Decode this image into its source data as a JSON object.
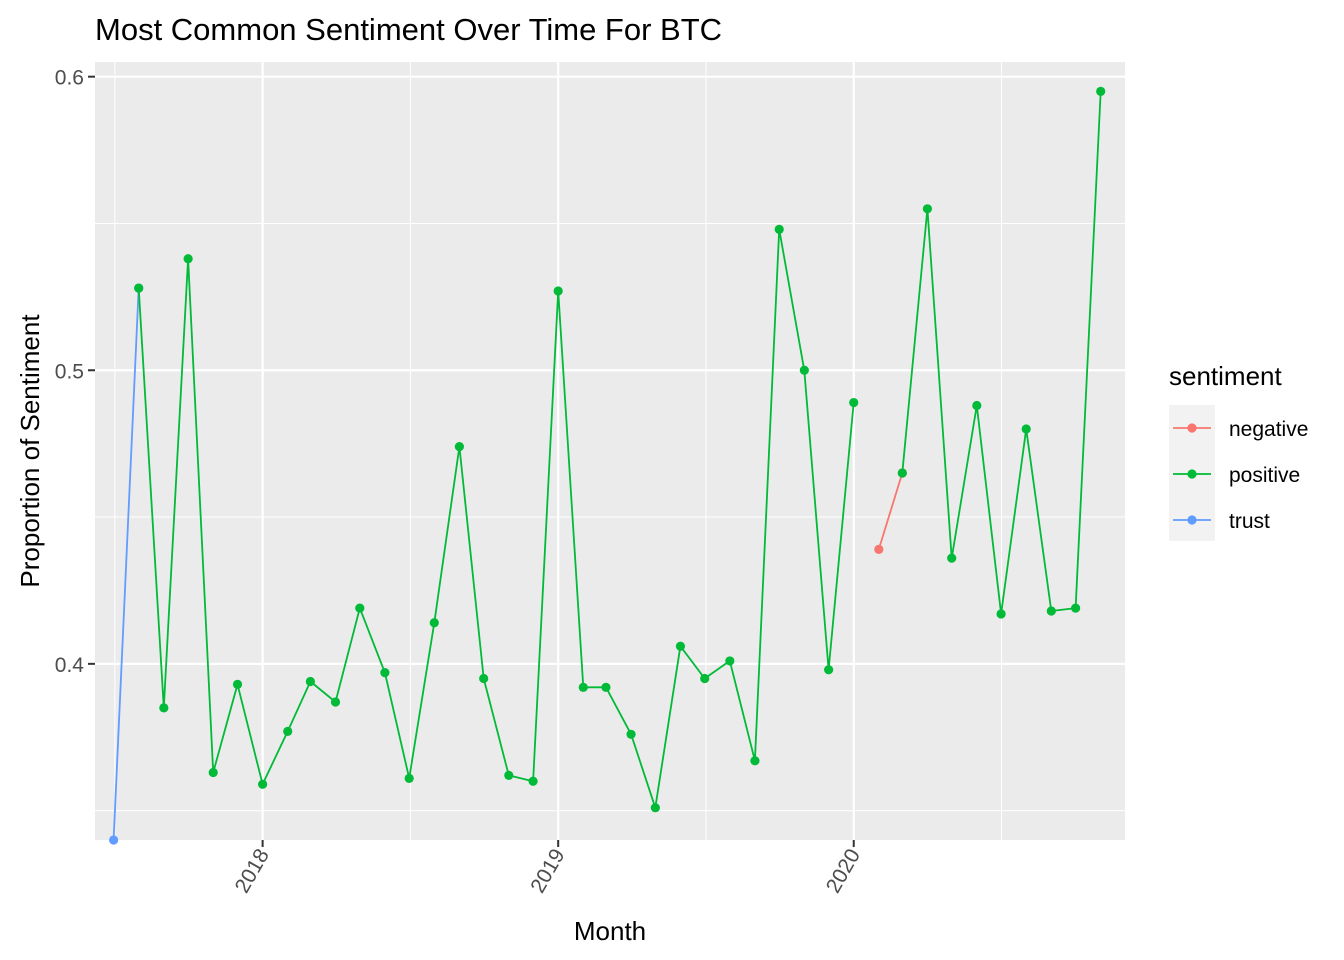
{
  "chart_data": {
    "type": "line",
    "title": "Most Common Sentiment Over Time For BTC",
    "xlabel": "Month",
    "ylabel": "Proportion of Sentiment",
    "ylim": [
      0.34,
      0.605
    ],
    "xlim": [
      "2017-06-08",
      "2020-12-01"
    ],
    "y_ticks": [
      0.4,
      0.5,
      0.6
    ],
    "y_tick_labels": [
      "0.4",
      "0.5",
      "0.6"
    ],
    "x_ticks": [
      "2018-01-01",
      "2019-01-01",
      "2020-01-01"
    ],
    "x_tick_labels": [
      "2018",
      "2019",
      "2020"
    ],
    "grid": true,
    "legend": {
      "title": "sentiment",
      "position": "right"
    },
    "colors": {
      "negative": "#F8766D",
      "positive": "#00BA38",
      "trust": "#619CFF"
    },
    "series": [
      {
        "name": "trust",
        "color": "#619CFF",
        "points": [
          [
            "2017-07-01",
            0.34
          ],
          [
            "2017-08-01",
            0.528
          ]
        ]
      },
      {
        "name": "positive",
        "color": "#00BA38",
        "points": [
          [
            "2017-08-01",
            0.528
          ],
          [
            "2017-09-01",
            0.385
          ],
          [
            "2017-10-01",
            0.538
          ],
          [
            "2017-11-01",
            0.363
          ],
          [
            "2017-12-01",
            0.393
          ],
          [
            "2018-01-01",
            0.359
          ],
          [
            "2018-02-01",
            0.377
          ],
          [
            "2018-03-01",
            0.394
          ],
          [
            "2018-04-01",
            0.387
          ],
          [
            "2018-05-01",
            0.419
          ],
          [
            "2018-06-01",
            0.397
          ],
          [
            "2018-07-01",
            0.361
          ],
          [
            "2018-08-01",
            0.414
          ],
          [
            "2018-09-01",
            0.474
          ],
          [
            "2018-10-01",
            0.395
          ],
          [
            "2018-11-01",
            0.362
          ],
          [
            "2018-12-01",
            0.36
          ],
          [
            "2019-01-01",
            0.527
          ],
          [
            "2019-02-01",
            0.392
          ],
          [
            "2019-03-01",
            0.392
          ],
          [
            "2019-04-01",
            0.376
          ],
          [
            "2019-05-01",
            0.351
          ],
          [
            "2019-06-01",
            0.406
          ],
          [
            "2019-07-01",
            0.395
          ],
          [
            "2019-08-01",
            0.401
          ],
          [
            "2019-09-01",
            0.367
          ],
          [
            "2019-10-01",
            0.548
          ],
          [
            "2019-11-01",
            0.5
          ],
          [
            "2019-12-01",
            0.398
          ],
          [
            "2020-01-01",
            0.489
          ]
        ]
      },
      {
        "name": "negative",
        "color": "#F8766D",
        "points": [
          [
            "2020-02-01",
            0.439
          ],
          [
            "2020-03-01",
            0.465
          ]
        ]
      },
      {
        "name": "positive",
        "color": "#00BA38",
        "points": [
          [
            "2020-03-01",
            0.465
          ],
          [
            "2020-04-01",
            0.555
          ],
          [
            "2020-05-01",
            0.436
          ],
          [
            "2020-06-01",
            0.488
          ],
          [
            "2020-07-01",
            0.417
          ],
          [
            "2020-08-01",
            0.48
          ],
          [
            "2020-09-01",
            0.418
          ],
          [
            "2020-10-01",
            0.419
          ],
          [
            "2020-11-01",
            0.595
          ]
        ]
      }
    ]
  }
}
